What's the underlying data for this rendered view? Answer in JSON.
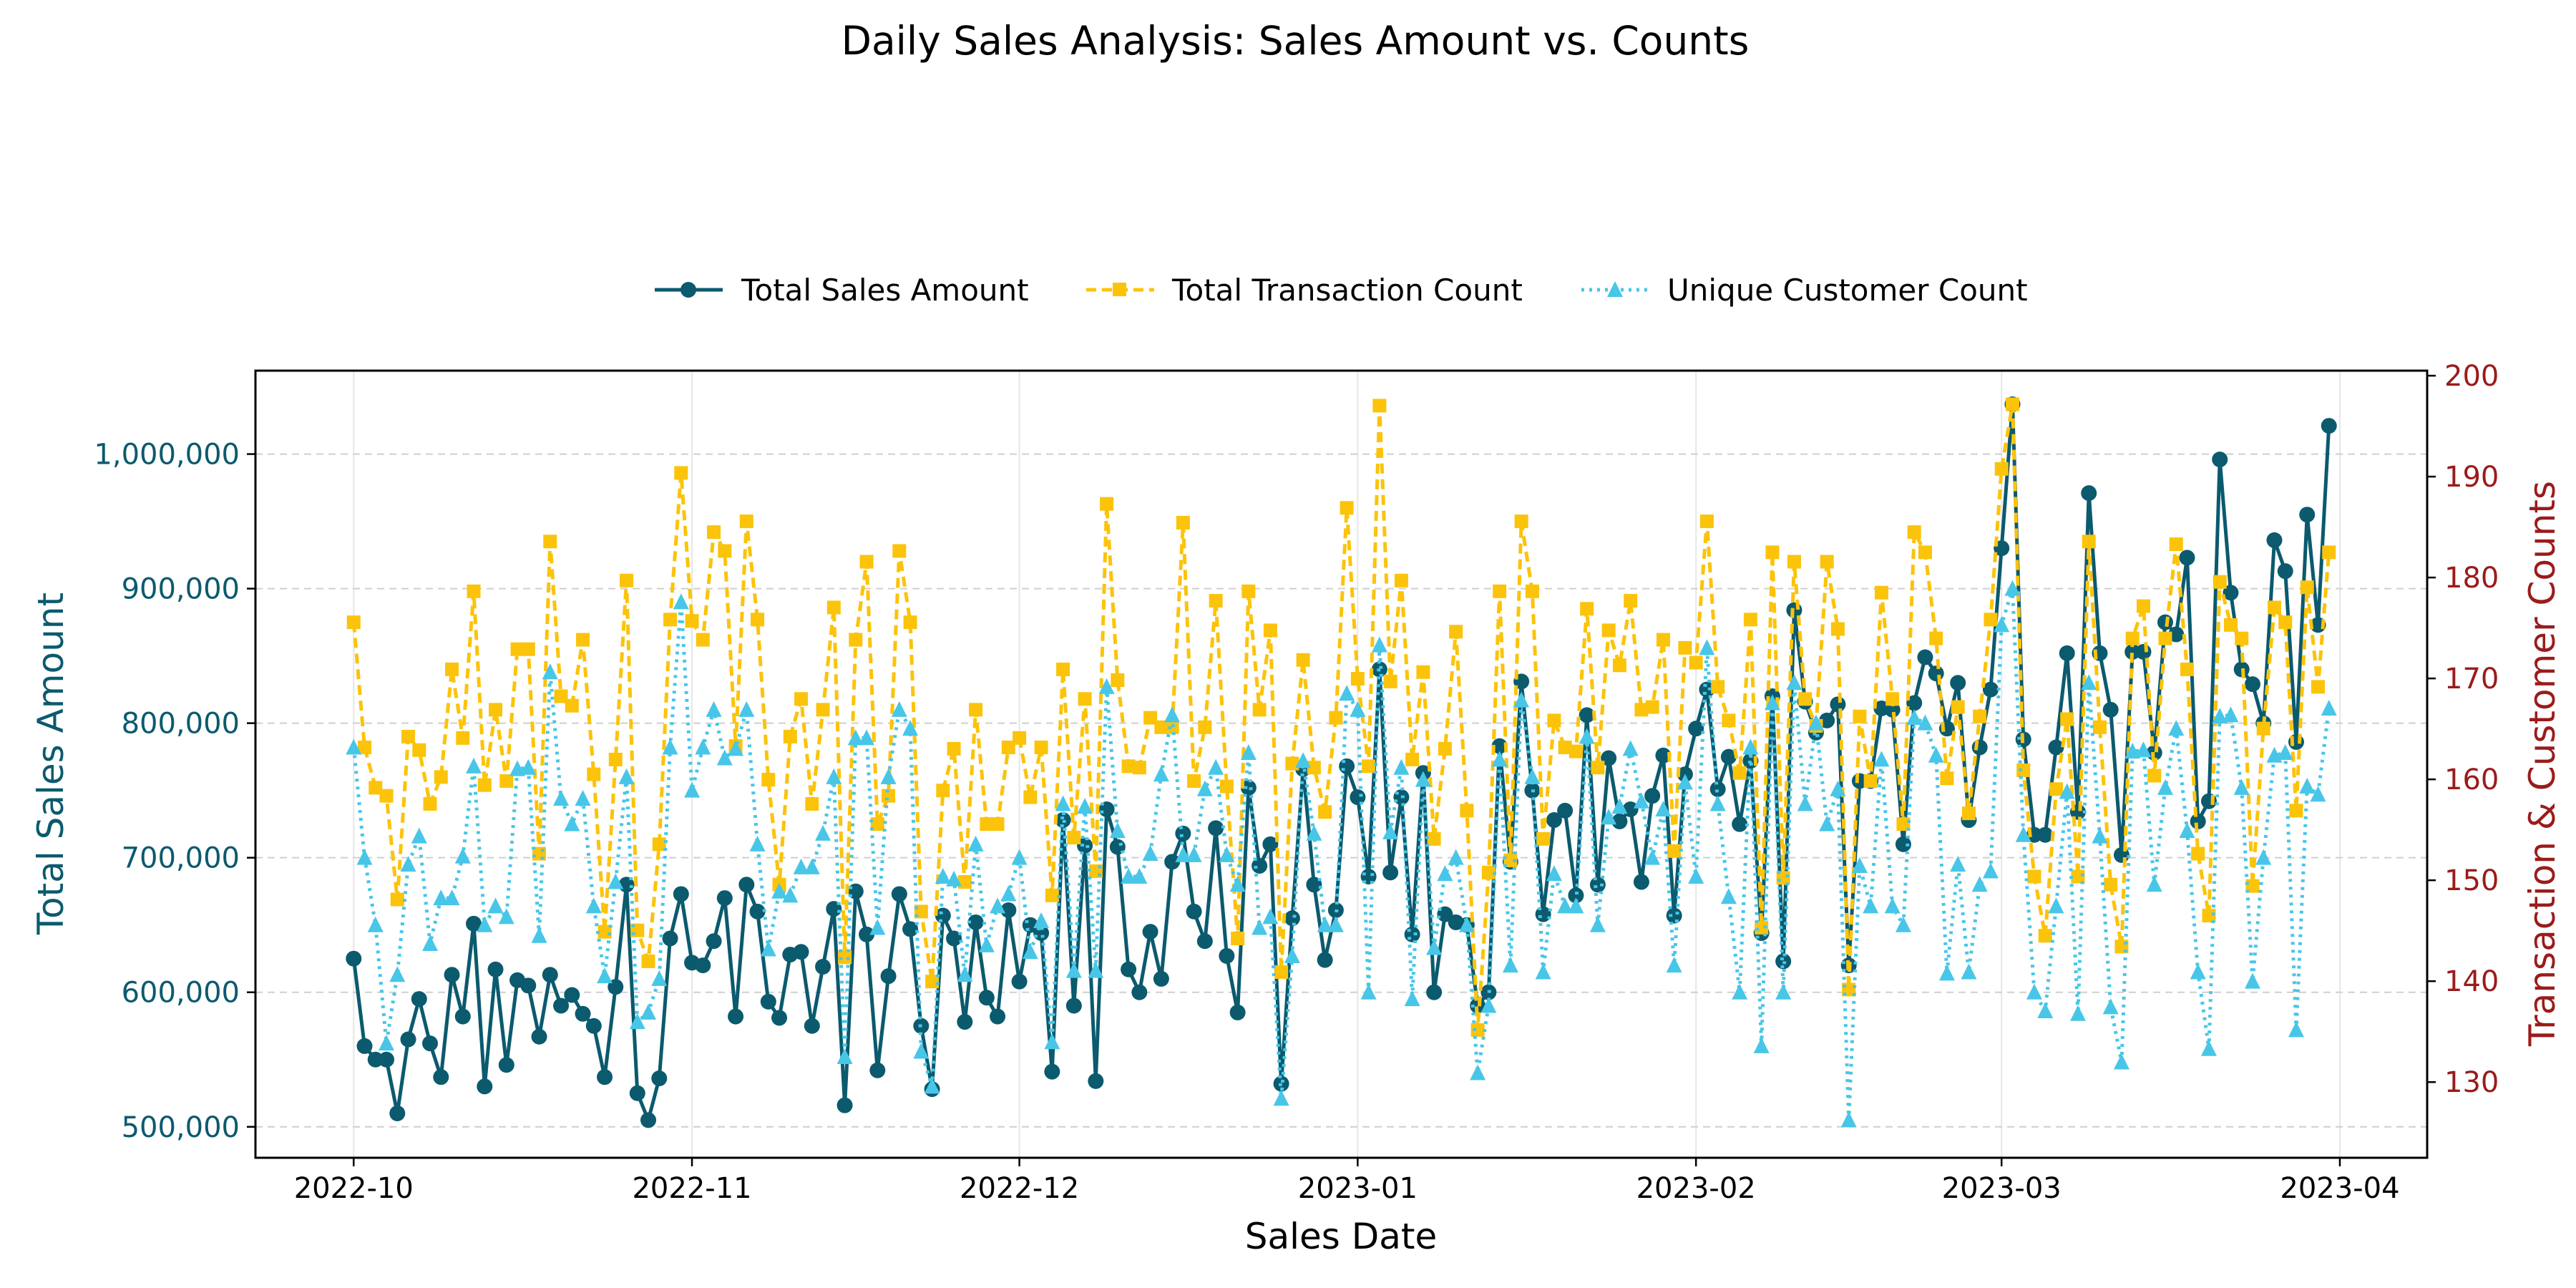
{
  "colors": {
    "sales": "#0b5a6e",
    "transactions": "#fcc30b",
    "customers": "#48c6e8",
    "left_axis": "#0b5a6e",
    "right_axis": "#9b1b1b"
  },
  "chart_data": {
    "type": "line",
    "title": "Daily Sales Analysis: Sales Amount vs. Counts",
    "xlabel": "Sales Date",
    "ylabel_left": "Total Sales Amount",
    "ylabel_right": "Transaction & Customer Counts",
    "legend_position": "top-center, above plot",
    "grid": true,
    "start_date": "2022-10-01",
    "ylim_left": [
      477000,
      1062000
    ],
    "ylim_right": [
      122.5,
      200.5
    ],
    "x_ticks": [
      {
        "date": "2022-10-01",
        "label": "2022-10"
      },
      {
        "date": "2022-11-01",
        "label": "2022-11"
      },
      {
        "date": "2022-12-01",
        "label": "2022-12"
      },
      {
        "date": "2023-01-01",
        "label": "2023-01"
      },
      {
        "date": "2023-02-01",
        "label": "2023-02"
      },
      {
        "date": "2023-03-01",
        "label": "2023-03"
      },
      {
        "date": "2023-04-01",
        "label": "2023-04"
      }
    ],
    "y_ticks_left": [
      {
        "value": 500000,
        "label": "500,000"
      },
      {
        "value": 600000,
        "label": "600,000"
      },
      {
        "value": 700000,
        "label": "700,000"
      },
      {
        "value": 800000,
        "label": "800,000"
      },
      {
        "value": 900000,
        "label": "900,000"
      },
      {
        "value": 1000000,
        "label": "1,000,000"
      }
    ],
    "y_ticks_right": [
      {
        "value": 130,
        "label": "130"
      },
      {
        "value": 140,
        "label": "140"
      },
      {
        "value": 150,
        "label": "150"
      },
      {
        "value": 160,
        "label": "160"
      },
      {
        "value": 170,
        "label": "170"
      },
      {
        "value": 180,
        "label": "180"
      },
      {
        "value": 190,
        "label": "190"
      },
      {
        "value": 200,
        "label": "200"
      }
    ],
    "series": [
      {
        "name": "Total Sales Amount",
        "axis": "left",
        "color_key": "sales",
        "style": "solid",
        "marker": "circle",
        "values": [
          625000,
          560000,
          550000,
          550000,
          510000,
          565000,
          595000,
          562000,
          537000,
          613000,
          582000,
          651000,
          530000,
          617000,
          546000,
          609000,
          605000,
          567000,
          613000,
          590000,
          598000,
          584000,
          575000,
          537000,
          604000,
          680000,
          525000,
          505000,
          536000,
          640000,
          673000,
          622000,
          620000,
          638000,
          670000,
          582000,
          680000,
          660000,
          593000,
          581000,
          628000,
          630000,
          575000,
          619000,
          662000,
          516000,
          675000,
          643000,
          542000,
          612000,
          673000,
          647000,
          575000,
          528000,
          657000,
          640000,
          578000,
          652000,
          596000,
          582000,
          661000,
          608000,
          650000,
          644000,
          541000,
          728000,
          590000,
          709000,
          534000,
          736000,
          708000,
          617000,
          600000,
          645000,
          610000,
          697000,
          718000,
          660000,
          638000,
          722000,
          627000,
          585000,
          752000,
          694000,
          710000,
          532000,
          655000,
          766000,
          680000,
          624000,
          661000,
          768000,
          745000,
          686000,
          840000,
          689000,
          745000,
          643000,
          763000,
          600000,
          658000,
          652000,
          650000,
          590000,
          600000,
          783000,
          697000,
          831000,
          750000,
          658000,
          728000,
          735000,
          672000,
          806000,
          680000,
          774000,
          727000,
          736000,
          682000,
          746000,
          776000,
          657000,
          762000,
          796000,
          825000,
          751000,
          775000,
          725000,
          772000,
          644000,
          820000,
          623000,
          884000,
          816000,
          793000,
          802000,
          814000,
          620000,
          757000,
          757000,
          811000,
          810000,
          710000,
          815000,
          849000,
          837000,
          796000,
          830000,
          728000,
          782000,
          825000,
          930000,
          1037000,
          788000,
          717000,
          717000,
          782000,
          852000,
          734000,
          971000,
          852000,
          810000,
          702000,
          853000,
          853000,
          778000,
          875000,
          866000,
          923000,
          727000,
          742000,
          996000,
          897000,
          840000,
          829000,
          800000,
          936000,
          913000,
          786000,
          955000,
          873000,
          1021000
        ]
      },
      {
        "name": "Total Transaction Count",
        "axis": "left",
        "color_key": "transactions",
        "style": "dashed",
        "marker": "square",
        "values": [
          875000,
          782000,
          752000,
          746000,
          669000,
          790000,
          780000,
          740000,
          760000,
          840000,
          789000,
          898000,
          754000,
          810000,
          757000,
          855000,
          855000,
          703000,
          935000,
          820000,
          813000,
          862000,
          762000,
          645000,
          773000,
          906000,
          646000,
          623000,
          710000,
          877000,
          986000,
          876000,
          862000,
          942000,
          928000,
          783000,
          950000,
          877000,
          758000,
          680000,
          790000,
          818000,
          740000,
          810000,
          886000,
          626000,
          862000,
          920000,
          725000,
          746000,
          928000,
          875000,
          660000,
          608000,
          750000,
          781000,
          682000,
          810000,
          725000,
          725000,
          782000,
          789000,
          745000,
          782000,
          672000,
          840000,
          715000,
          818000,
          690000,
          963000,
          832000,
          768000,
          767000,
          804000,
          797000,
          797000,
          949000,
          757000,
          797000,
          891000,
          753000,
          640000,
          898000,
          810000,
          869000,
          615000,
          770000,
          847000,
          767000,
          734000,
          804000,
          960000,
          833000,
          768000,
          1036000,
          831000,
          906000,
          773000,
          838000,
          714000,
          781000,
          868000,
          735000,
          572000,
          689000,
          898000,
          698000,
          950000,
          898000,
          714000,
          802000,
          782000,
          779000,
          885000,
          767000,
          869000,
          843000,
          891000,
          810000,
          812000,
          862000,
          705000,
          856000,
          845000,
          950000,
          827000,
          802000,
          763000,
          877000,
          648000,
          927000,
          685000,
          920000,
          818000,
          798000,
          920000,
          870000,
          602000,
          805000,
          757000,
          897000,
          818000,
          725000,
          942000,
          927000,
          863000,
          759000,
          812000,
          733000,
          805000,
          877000,
          989000,
          1037000,
          765000,
          686000,
          642000,
          751000,
          803000,
          686000,
          935000,
          797000,
          680000,
          634000,
          863000,
          887000,
          761000,
          863000,
          933000,
          840000,
          703000,
          657000,
          905000,
          873000,
          863000,
          679000,
          796000,
          886000,
          875000,
          735000,
          901000,
          827000,
          927000
        ]
      },
      {
        "name": "Unique Customer Count",
        "axis": "left",
        "color_key": "customers",
        "style": "dotted",
        "marker": "triangle",
        "values": [
          782000,
          700000,
          650000,
          562000,
          613000,
          695000,
          716000,
          636000,
          670000,
          670000,
          701000,
          768000,
          650000,
          664000,
          656000,
          766000,
          767000,
          642000,
          838000,
          744000,
          725000,
          744000,
          664000,
          612000,
          682000,
          760000,
          578000,
          585000,
          610000,
          782000,
          890000,
          750000,
          782000,
          810000,
          774000,
          781000,
          810000,
          710000,
          632000,
          675000,
          672000,
          693000,
          693000,
          718000,
          760000,
          552000,
          789000,
          789000,
          648000,
          760000,
          810000,
          796000,
          556000,
          530000,
          686000,
          684000,
          613000,
          710000,
          635000,
          664000,
          673000,
          700000,
          630000,
          653000,
          563000,
          740000,
          616000,
          738000,
          616000,
          827000,
          720000,
          686000,
          686000,
          703000,
          762000,
          806000,
          702000,
          702000,
          751000,
          767000,
          702000,
          680000,
          778000,
          648000,
          656000,
          521000,
          627000,
          772000,
          718000,
          650000,
          650000,
          822000,
          810000,
          600000,
          858000,
          719000,
          767000,
          595000,
          758000,
          633000,
          688000,
          700000,
          650000,
          540000,
          590000,
          773000,
          620000,
          817000,
          760000,
          615000,
          688000,
          664000,
          664000,
          790000,
          650000,
          730000,
          738000,
          781000,
          742000,
          700000,
          736000,
          620000,
          756000,
          686000,
          856000,
          740000,
          671000,
          600000,
          782000,
          560000,
          815000,
          600000,
          830000,
          740000,
          800000,
          725000,
          751000,
          505000,
          694000,
          664000,
          773000,
          664000,
          650000,
          804000,
          800000,
          776000,
          614000,
          695000,
          615000,
          680000,
          690000,
          873000,
          900000,
          717000,
          600000,
          586000,
          664000,
          749000,
          584000,
          830000,
          716000,
          589000,
          548000,
          779000,
          780000,
          680000,
          752000,
          796000,
          720000,
          615000,
          558000,
          805000,
          806000,
          752000,
          608000,
          700000,
          776000,
          778000,
          572000,
          753000,
          747000,
          811000
        ]
      }
    ]
  }
}
